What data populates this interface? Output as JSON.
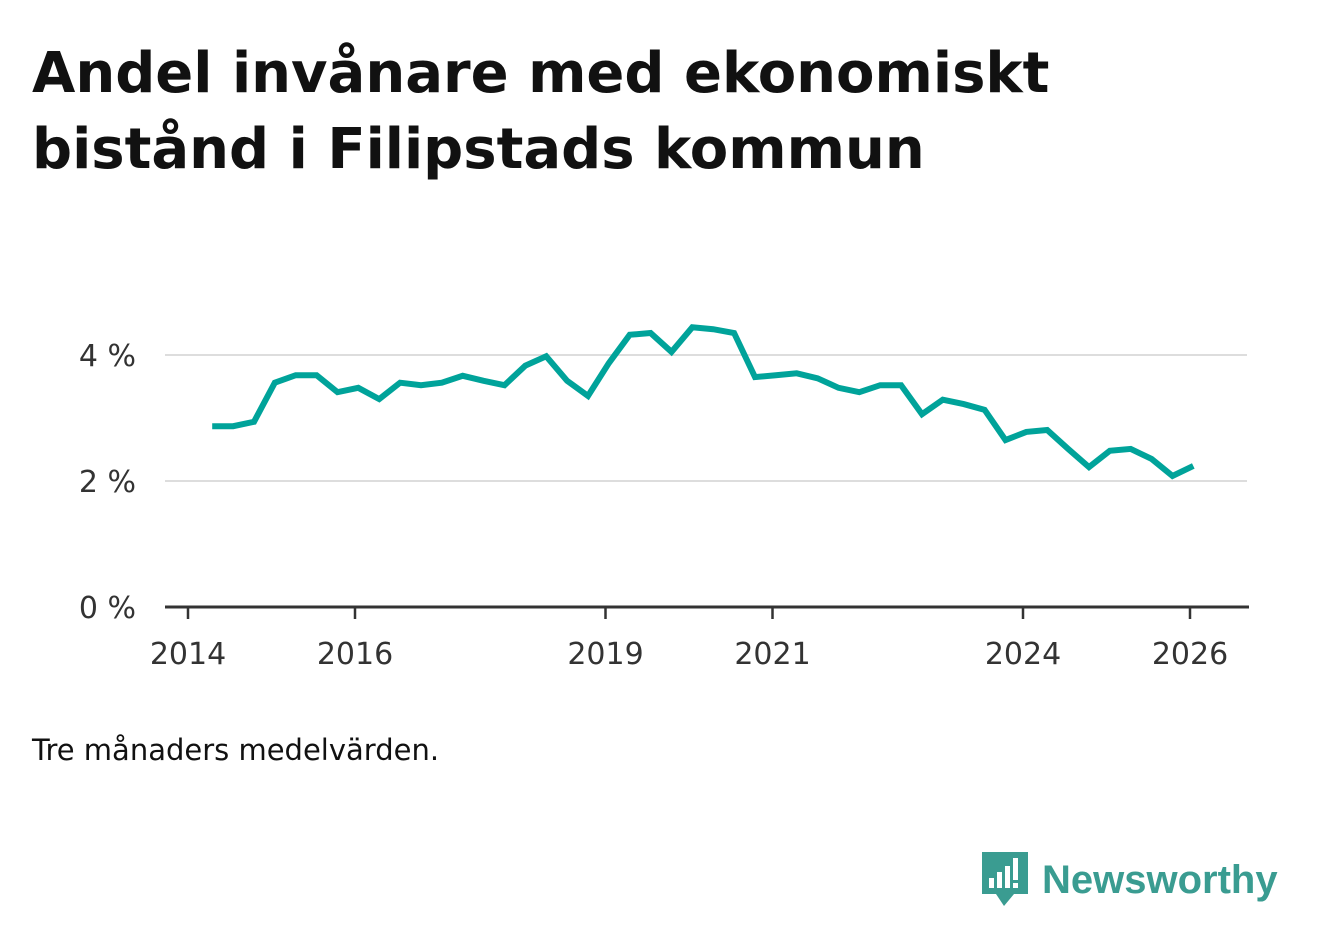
{
  "chart_data": {
    "type": "line",
    "title": "Andel invånare med ekonomiskt bistånd i Filipstads kommun",
    "note": "Tre månaders medelvärden.",
    "xlabel": "",
    "ylabel": "",
    "x_start": 2014.29,
    "x_step": 0.25,
    "x_ticks": [
      2014,
      2016,
      2019,
      2021,
      2024,
      2026
    ],
    "x_tick_labels": [
      "2014",
      "2016",
      "2019",
      "2021",
      "2024",
      "2026"
    ],
    "y_ticks": [
      0,
      2,
      4
    ],
    "y_tick_labels": [
      "0 %",
      "2 %",
      "4 %"
    ],
    "ylim": [
      0,
      4.8
    ],
    "xlim": [
      2013.9,
      2026.7
    ],
    "grid": true,
    "series": [
      {
        "name": "Andel",
        "color": "#00a39a",
        "values": [
          2.87,
          2.87,
          2.94,
          3.56,
          3.68,
          3.68,
          3.41,
          3.48,
          3.3,
          3.56,
          3.52,
          3.56,
          3.67,
          3.59,
          3.52,
          3.83,
          3.98,
          3.59,
          3.35,
          3.87,
          4.32,
          4.35,
          4.05,
          4.44,
          4.41,
          4.35,
          3.65,
          3.68,
          3.71,
          3.63,
          3.48,
          3.41,
          3.52,
          3.52,
          3.06,
          3.29,
          3.22,
          3.13,
          2.65,
          2.78,
          2.81,
          2.51,
          2.22,
          2.48,
          2.51,
          2.35,
          2.08,
          2.24
        ]
      }
    ]
  },
  "brand": {
    "name": "Newsworthy",
    "color": "#3a9c91"
  }
}
